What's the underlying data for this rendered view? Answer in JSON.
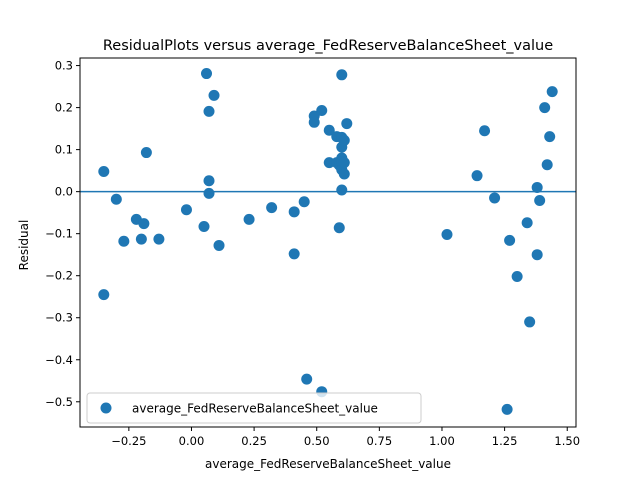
{
  "chart_data": {
    "type": "scatter",
    "title": "ResidualPlots versus average_FedReserveBalanceSheet_value",
    "xlabel": "average_FedReserveBalanceSheet_value",
    "ylabel": "Residual",
    "xlim": [
      -0.445,
      1.535
    ],
    "ylim": [
      -0.56,
      0.318
    ],
    "xticks": [
      -0.25,
      0.0,
      0.25,
      0.5,
      0.75,
      1.0,
      1.25,
      1.5
    ],
    "xtick_labels": [
      "−0.25",
      "0.00",
      "0.25",
      "0.50",
      "0.75",
      "1.00",
      "1.25",
      "1.50"
    ],
    "yticks": [
      0.3,
      0.2,
      0.1,
      0.0,
      -0.1,
      -0.2,
      -0.3,
      -0.4,
      -0.5
    ],
    "ytick_labels": [
      "0.3",
      "0.2",
      "0.1",
      "0.0",
      "−0.1",
      "−0.2",
      "−0.3",
      "−0.4",
      "−0.5"
    ],
    "hline": 0.0,
    "legend": {
      "position": "lower-left",
      "label": "average_FedReserveBalanceSheet_value"
    },
    "grid": false,
    "color": "#1f77b4",
    "series": [
      {
        "name": "average_FedReserveBalanceSheet_value",
        "points": [
          [
            -0.35,
            0.048
          ],
          [
            -0.35,
            -0.245
          ],
          [
            -0.3,
            -0.018
          ],
          [
            -0.27,
            -0.118
          ],
          [
            -0.22,
            -0.066
          ],
          [
            -0.2,
            -0.113
          ],
          [
            -0.19,
            -0.076
          ],
          [
            -0.18,
            0.093
          ],
          [
            -0.13,
            -0.113
          ],
          [
            -0.02,
            -0.043
          ],
          [
            0.05,
            -0.083
          ],
          [
            0.06,
            0.281
          ],
          [
            0.07,
            0.191
          ],
          [
            0.07,
            0.026
          ],
          [
            0.07,
            -0.004
          ],
          [
            0.09,
            0.229
          ],
          [
            0.11,
            -0.128
          ],
          [
            0.23,
            -0.066
          ],
          [
            0.32,
            -0.038
          ],
          [
            0.41,
            -0.048
          ],
          [
            0.41,
            -0.148
          ],
          [
            0.45,
            -0.024
          ],
          [
            0.46,
            -0.446
          ],
          [
            0.49,
            0.18
          ],
          [
            0.49,
            0.165
          ],
          [
            0.52,
            0.193
          ],
          [
            0.52,
            -0.476
          ],
          [
            0.55,
            0.146
          ],
          [
            0.55,
            0.069
          ],
          [
            0.58,
            0.131
          ],
          [
            0.58,
            0.069
          ],
          [
            0.59,
            0.063
          ],
          [
            0.6,
            0.129
          ],
          [
            0.59,
            -0.086
          ],
          [
            0.6,
            0.106
          ],
          [
            0.6,
            0.08
          ],
          [
            0.6,
            0.071
          ],
          [
            0.6,
            0.052
          ],
          [
            0.61,
            0.042
          ],
          [
            0.6,
            0.004
          ],
          [
            0.6,
            0.278
          ],
          [
            0.61,
            0.122
          ],
          [
            0.62,
            0.162
          ],
          [
            0.61,
            0.069
          ],
          [
            1.02,
            -0.102
          ],
          [
            1.14,
            0.038
          ],
          [
            1.17,
            0.145
          ],
          [
            1.21,
            -0.015
          ],
          [
            1.26,
            -0.518
          ],
          [
            1.27,
            -0.116
          ],
          [
            1.3,
            -0.202
          ],
          [
            1.34,
            -0.074
          ],
          [
            1.35,
            -0.31
          ],
          [
            1.38,
            -0.15
          ],
          [
            1.38,
            0.01
          ],
          [
            1.39,
            -0.021
          ],
          [
            1.41,
            0.2
          ],
          [
            1.42,
            0.064
          ],
          [
            1.43,
            0.131
          ],
          [
            1.44,
            0.238
          ]
        ]
      }
    ]
  }
}
